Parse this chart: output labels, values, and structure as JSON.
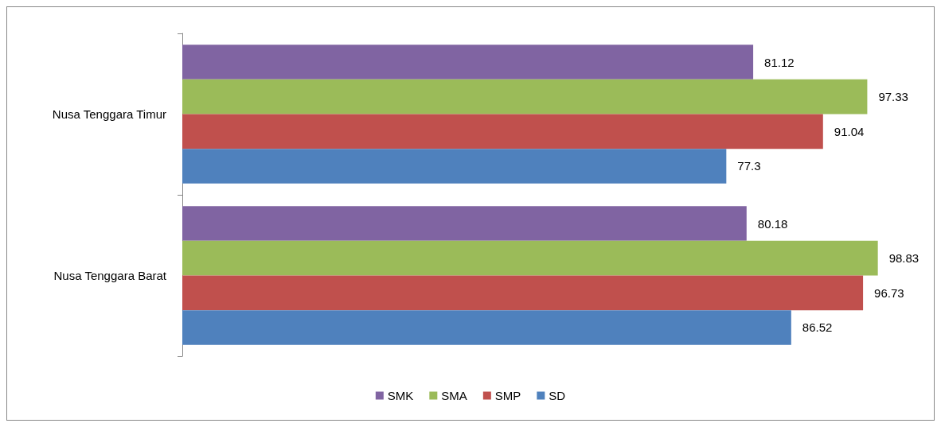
{
  "chart_data": {
    "type": "bar",
    "orientation": "horizontal",
    "categories": [
      "Nusa Tenggara Timur",
      "Nusa Tenggara Barat"
    ],
    "series": [
      {
        "name": "SMK",
        "color": "#8064a2",
        "values": [
          81.12,
          80.18
        ]
      },
      {
        "name": "SMA",
        "color": "#9bbb59",
        "values": [
          97.33,
          98.83
        ]
      },
      {
        "name": "SMP",
        "color": "#c0504d",
        "values": [
          91.04,
          96.73
        ]
      },
      {
        "name": "SD",
        "color": "#4f81bd",
        "values": [
          77.3,
          86.52
        ]
      }
    ],
    "data_labels": true,
    "legend": "bottom",
    "grid": false,
    "tick_labels": "y"
  }
}
